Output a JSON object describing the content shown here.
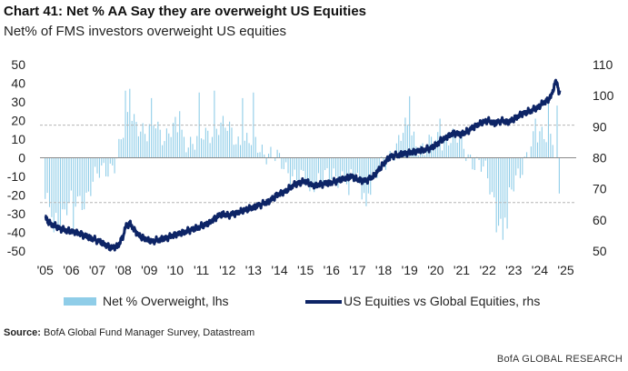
{
  "title": "Chart 41: Net % AA Say they are overweight US Equities",
  "subtitle": "Net% of FMS investors overweight US equities",
  "source_label": "Source:",
  "source_text": " BofA Global Fund Manager Survey, Datastream",
  "brand": "BofA GLOBAL RESEARCH",
  "colors": {
    "bars": "#8fcde8",
    "line": "#0d2466",
    "guides": "#b5b5b5",
    "zero": "#8a8a8a"
  },
  "chart_data": {
    "type": "bar+line",
    "x_tick_labels": [
      "'05",
      "'06",
      "'07",
      "'08",
      "'09",
      "'10",
      "'11",
      "'12",
      "'13",
      "'14",
      "'15",
      "'16",
      "'17",
      "'18",
      "'19",
      "'20",
      "'21",
      "'22",
      "'23",
      "'24",
      "'25"
    ],
    "x_tick_years": [
      2005,
      2006,
      2007,
      2008,
      2009,
      2010,
      2011,
      2012,
      2013,
      2014,
      2015,
      2016,
      2017,
      2018,
      2019,
      2020,
      2021,
      2022,
      2023,
      2024,
      2025
    ],
    "xlim": [
      2004.8,
      2025.4
    ],
    "y_left": {
      "lim": [
        -50,
        50
      ],
      "ticks": [
        50,
        40,
        30,
        20,
        10,
        0,
        -10,
        -20,
        -30,
        -40,
        -50
      ]
    },
    "y_right": {
      "lim": [
        50,
        110
      ],
      "ticks": [
        110,
        100,
        90,
        80,
        70,
        60,
        50
      ]
    },
    "reference_lines_lhs": [
      17.5,
      -24
    ],
    "legend_position": "bottom",
    "series": [
      {
        "name": "Net % Overweight, lhs",
        "kind": "bar",
        "axis": "left",
        "keyframes": [
          [
            2005.0,
            -25
          ],
          [
            2005.5,
            -32
          ],
          [
            2006.0,
            -25
          ],
          [
            2006.5,
            -22
          ],
          [
            2006.9,
            -12
          ],
          [
            2007.3,
            -6
          ],
          [
            2007.7,
            -2
          ],
          [
            2008.0,
            12
          ],
          [
            2008.3,
            25
          ],
          [
            2008.6,
            18
          ],
          [
            2008.9,
            10
          ],
          [
            2009.2,
            20
          ],
          [
            2009.6,
            12
          ],
          [
            2010.0,
            15
          ],
          [
            2010.4,
            10
          ],
          [
            2010.8,
            8
          ],
          [
            2011.2,
            12
          ],
          [
            2011.6,
            18
          ],
          [
            2012.0,
            15
          ],
          [
            2012.4,
            10
          ],
          [
            2012.8,
            8
          ],
          [
            2013.2,
            6
          ],
          [
            2013.6,
            3
          ],
          [
            2014.0,
            -3
          ],
          [
            2014.5,
            -8
          ],
          [
            2015.0,
            -14
          ],
          [
            2015.5,
            -10
          ],
          [
            2016.0,
            -12
          ],
          [
            2016.5,
            -8
          ],
          [
            2016.9,
            -13
          ],
          [
            2017.2,
            -18
          ],
          [
            2017.6,
            -12
          ],
          [
            2018.0,
            -5
          ],
          [
            2018.4,
            5
          ],
          [
            2018.8,
            15
          ],
          [
            2019.2,
            10
          ],
          [
            2019.6,
            5
          ],
          [
            2020.0,
            8
          ],
          [
            2020.4,
            12
          ],
          [
            2020.8,
            10
          ],
          [
            2021.1,
            5
          ],
          [
            2021.5,
            -2
          ],
          [
            2021.9,
            -8
          ],
          [
            2022.2,
            -20
          ],
          [
            2022.5,
            -35
          ],
          [
            2022.8,
            -25
          ],
          [
            2023.1,
            -10
          ],
          [
            2023.5,
            2
          ],
          [
            2023.9,
            10
          ],
          [
            2024.2,
            15
          ],
          [
            2024.5,
            12
          ],
          [
            2024.75,
            -22
          ]
        ],
        "spikes": [
          [
            2005.3,
            -40
          ],
          [
            2006.1,
            -38
          ],
          [
            2008.05,
            36
          ],
          [
            2008.25,
            37
          ],
          [
            2009.1,
            32
          ],
          [
            2010.2,
            25
          ],
          [
            2010.9,
            35
          ],
          [
            2011.5,
            36
          ],
          [
            2012.6,
            32
          ],
          [
            2013.0,
            35
          ],
          [
            2015.2,
            -18
          ],
          [
            2016.7,
            -20
          ],
          [
            2017.3,
            -26
          ],
          [
            2019.0,
            33
          ],
          [
            2020.2,
            21
          ],
          [
            2022.35,
            -40
          ],
          [
            2022.6,
            -44
          ],
          [
            2022.75,
            -38
          ],
          [
            2023.8,
            21
          ],
          [
            2024.33,
            31
          ],
          [
            2024.68,
            28
          ]
        ]
      },
      {
        "name": "US Equities vs Global Equities, rhs",
        "kind": "line",
        "axis": "right",
        "keyframes": [
          [
            2005.0,
            61
          ],
          [
            2005.15,
            59
          ],
          [
            2005.4,
            58
          ],
          [
            2005.6,
            57
          ],
          [
            2005.9,
            56.5
          ],
          [
            2006.2,
            56
          ],
          [
            2006.5,
            55
          ],
          [
            2006.8,
            54
          ],
          [
            2007.1,
            53
          ],
          [
            2007.5,
            51
          ],
          [
            2007.8,
            51.5
          ],
          [
            2008.0,
            55
          ],
          [
            2008.1,
            58
          ],
          [
            2008.25,
            59
          ],
          [
            2008.4,
            57
          ],
          [
            2008.6,
            55
          ],
          [
            2008.8,
            54
          ],
          [
            2009.1,
            53
          ],
          [
            2009.3,
            53.5
          ],
          [
            2009.6,
            54
          ],
          [
            2009.9,
            55
          ],
          [
            2010.3,
            56
          ],
          [
            2010.7,
            57
          ],
          [
            2011.0,
            58
          ],
          [
            2011.3,
            59
          ],
          [
            2011.6,
            61
          ],
          [
            2011.8,
            62
          ],
          [
            2012.0,
            61.5
          ],
          [
            2012.3,
            62
          ],
          [
            2012.6,
            63
          ],
          [
            2013.0,
            64
          ],
          [
            2013.3,
            65
          ],
          [
            2013.6,
            66
          ],
          [
            2013.9,
            68
          ],
          [
            2014.2,
            69
          ],
          [
            2014.5,
            71
          ],
          [
            2014.8,
            72
          ],
          [
            2015.0,
            72.5
          ],
          [
            2015.3,
            71
          ],
          [
            2015.6,
            71.5
          ],
          [
            2016.0,
            72
          ],
          [
            2016.4,
            73
          ],
          [
            2016.8,
            74
          ],
          [
            2017.0,
            73
          ],
          [
            2017.3,
            72.5
          ],
          [
            2017.6,
            74
          ],
          [
            2017.9,
            77
          ],
          [
            2018.1,
            79
          ],
          [
            2018.3,
            80.5
          ],
          [
            2018.6,
            81
          ],
          [
            2018.9,
            81.5
          ],
          [
            2019.2,
            82
          ],
          [
            2019.5,
            82.5
          ],
          [
            2019.8,
            83
          ],
          [
            2020.0,
            84
          ],
          [
            2020.2,
            85.5
          ],
          [
            2020.4,
            86.5
          ],
          [
            2020.7,
            88
          ],
          [
            2020.9,
            87.5
          ],
          [
            2021.1,
            88
          ],
          [
            2021.4,
            89.5
          ],
          [
            2021.7,
            91
          ],
          [
            2022.0,
            92
          ],
          [
            2022.3,
            91
          ],
          [
            2022.5,
            92
          ],
          [
            2022.8,
            91.5
          ],
          [
            2023.0,
            92.5
          ],
          [
            2023.3,
            94
          ],
          [
            2023.6,
            95
          ],
          [
            2023.9,
            96
          ],
          [
            2024.1,
            97.5
          ],
          [
            2024.3,
            98.5
          ],
          [
            2024.45,
            100
          ],
          [
            2024.55,
            103
          ],
          [
            2024.62,
            104.5
          ],
          [
            2024.68,
            104
          ],
          [
            2024.73,
            101
          ],
          [
            2024.78,
            100.5
          ]
        ]
      }
    ]
  }
}
